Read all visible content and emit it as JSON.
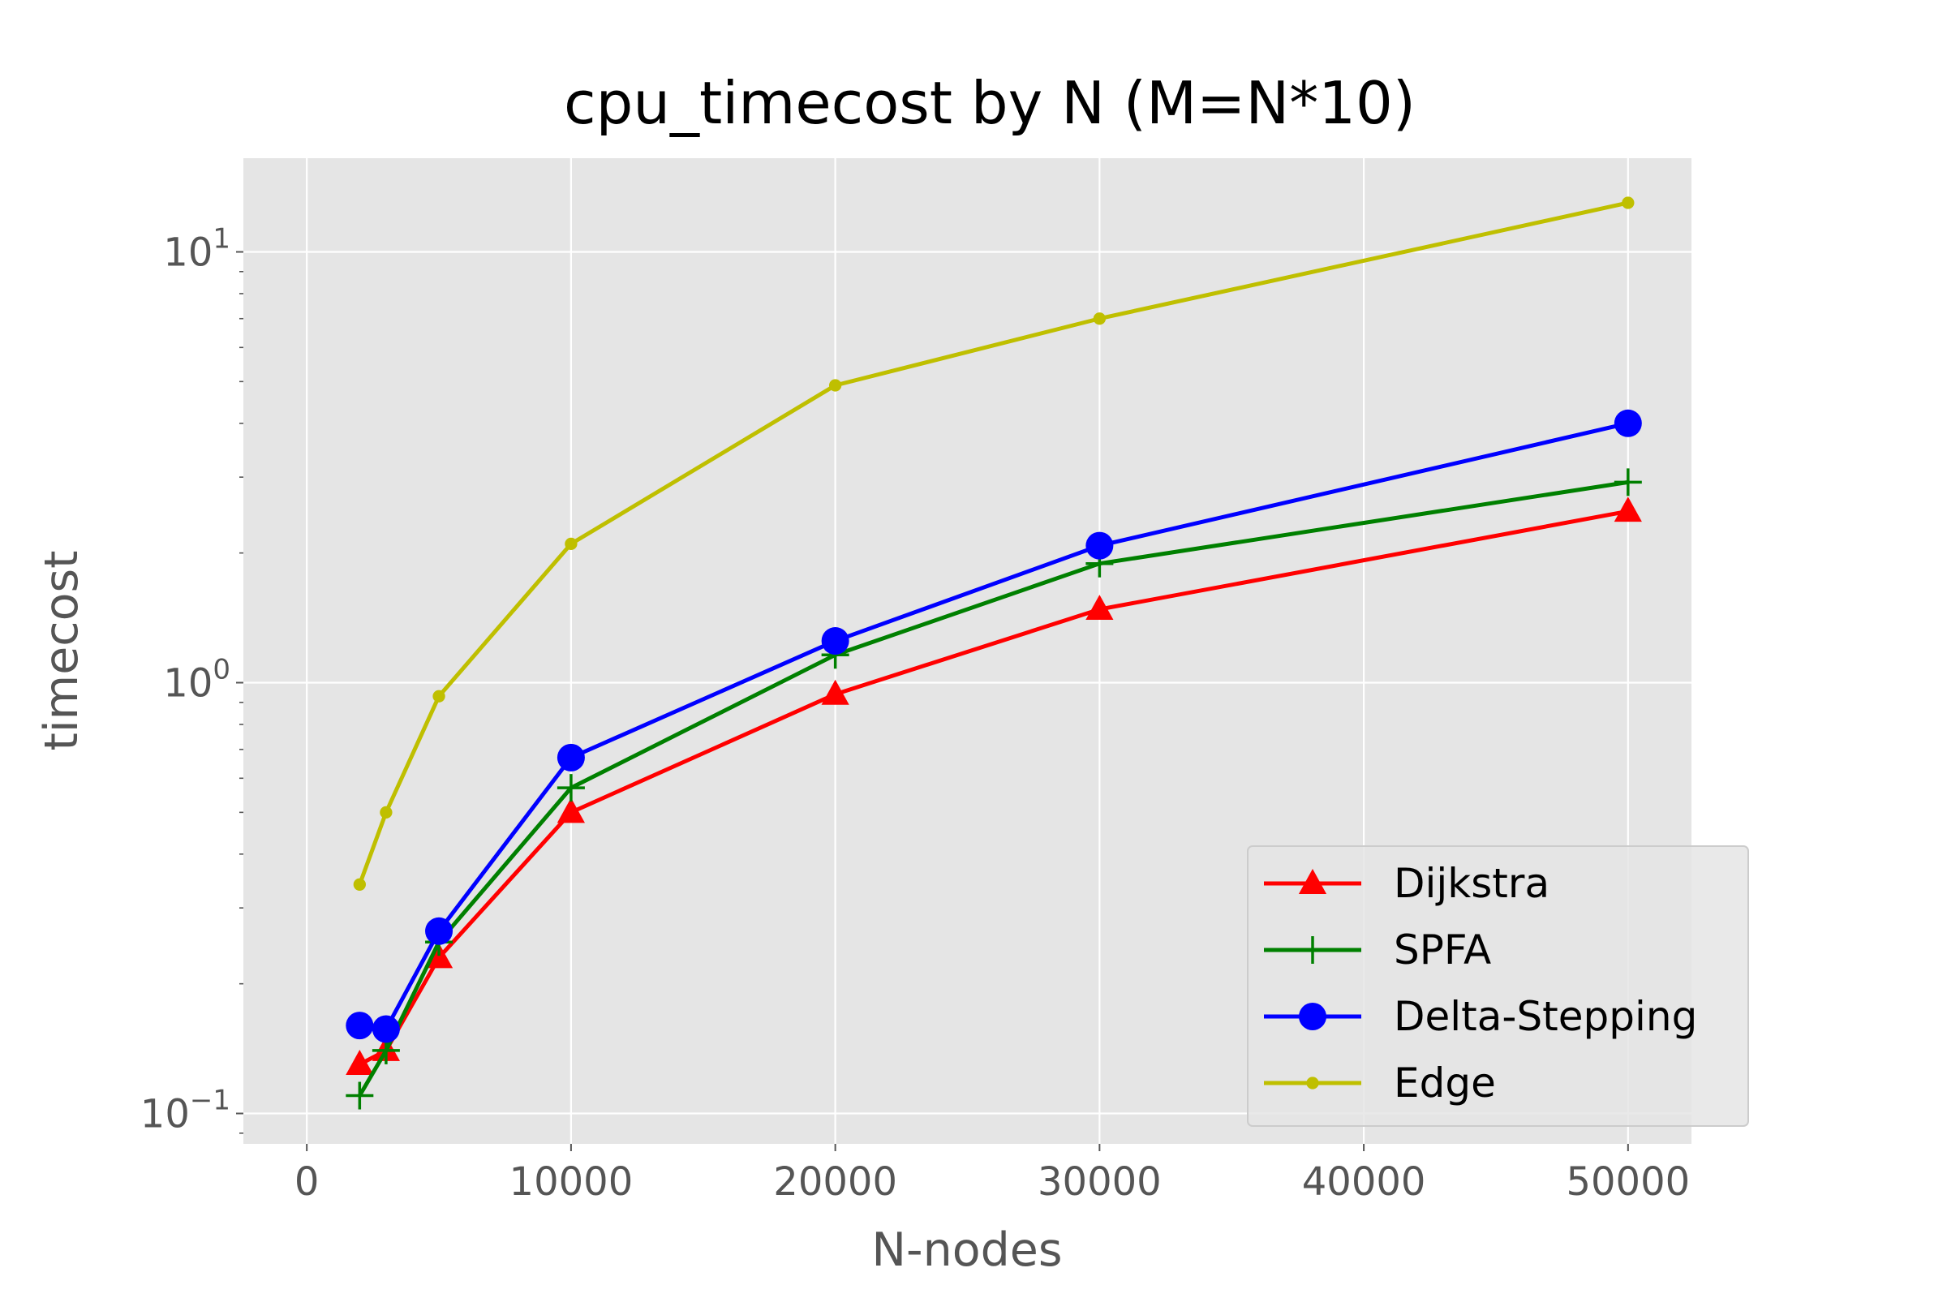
{
  "chart_data": {
    "type": "line",
    "title": "cpu_timecost by N (M=N*10)",
    "xlabel": "N-nodes",
    "ylabel": "timecost",
    "xscale": "linear",
    "yscale": "log",
    "xlim": [
      -2400,
      52400
    ],
    "ylim": [
      0.085,
      16.5
    ],
    "xticks": [
      0,
      10000,
      20000,
      30000,
      40000,
      50000
    ],
    "xtick_labels": [
      "0",
      "10000",
      "20000",
      "30000",
      "40000",
      "50000"
    ],
    "yticks": [
      0.1,
      1,
      10
    ],
    "ytick_labels": [
      {
        "base": "10",
        "exp": "−1"
      },
      {
        "base": "10",
        "exp": "0"
      },
      {
        "base": "10",
        "exp": "1"
      }
    ],
    "grid": true,
    "legend_position": "lower-right",
    "x": [
      2000,
      3000,
      5000,
      10000,
      20000,
      30000,
      50000
    ],
    "series": [
      {
        "name": "Dijkstra",
        "color": "#ff0000",
        "marker": "triangle",
        "values": [
          0.13,
          0.14,
          0.23,
          0.5,
          0.94,
          1.48,
          2.5
        ]
      },
      {
        "name": "SPFA",
        "color": "#008000",
        "marker": "plus",
        "values": [
          0.11,
          0.14,
          0.25,
          0.57,
          1.16,
          1.89,
          2.92
        ]
      },
      {
        "name": "Delta-Stepping",
        "color": "#0000ff",
        "marker": "circle",
        "values": [
          0.16,
          0.157,
          0.265,
          0.67,
          1.25,
          2.08,
          4.0
        ]
      },
      {
        "name": "Edge",
        "color": "#bfbf00",
        "marker": "dot",
        "values": [
          0.34,
          0.5,
          0.93,
          2.1,
          4.9,
          7.0,
          13.0
        ]
      }
    ]
  }
}
